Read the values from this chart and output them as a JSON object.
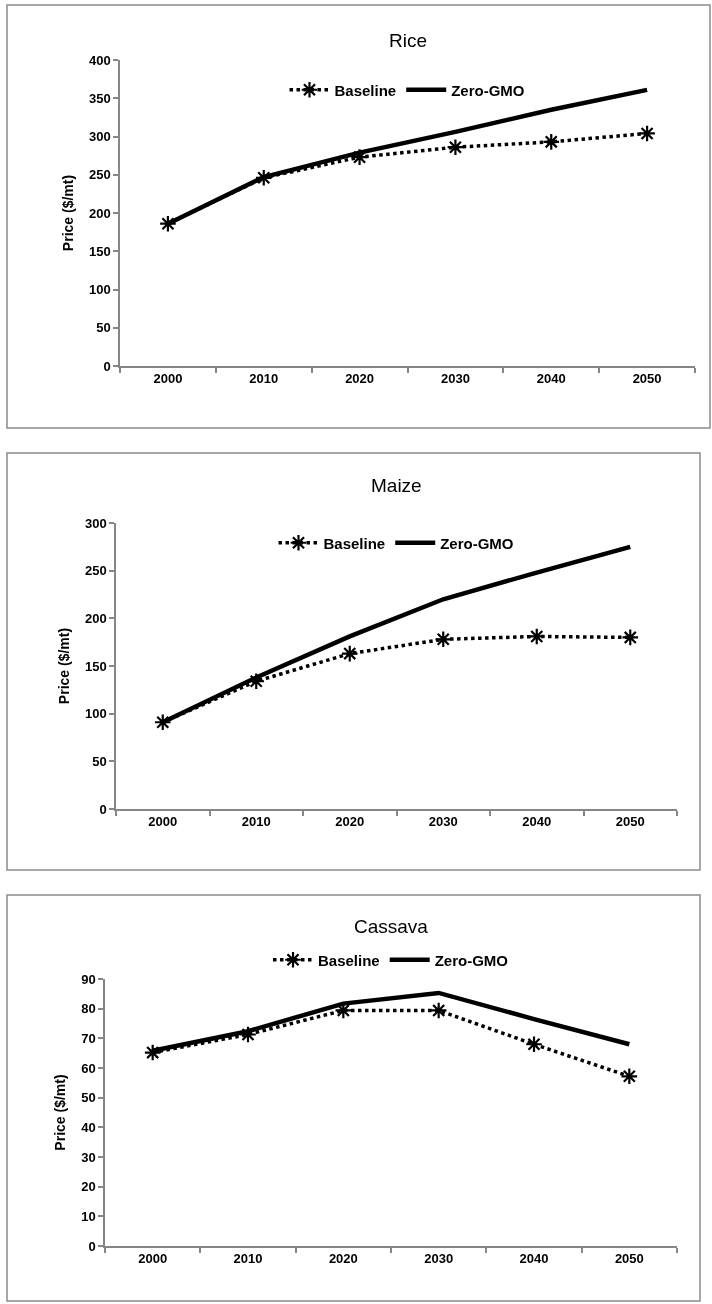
{
  "chart_data": [
    {
      "type": "line",
      "title": "Rice",
      "ylabel": "Price ($/mt)",
      "categories": [
        "2000",
        "2010",
        "2020",
        "2030",
        "2040",
        "2050"
      ],
      "ylim": [
        0,
        400
      ],
      "yticks": [
        0,
        50,
        100,
        150,
        200,
        250,
        300,
        350,
        400
      ],
      "legend": "top",
      "series": [
        {
          "name": "Baseline",
          "color": "#000000",
          "values": [
            186,
            246,
            273,
            286,
            293,
            304
          ],
          "marker": "cross",
          "line_style": "dotted"
        },
        {
          "name": "Zero-GMO",
          "color": "#000000",
          "values": [
            186,
            247,
            279,
            306,
            335,
            361
          ],
          "marker": "none",
          "line_style": "solid"
        }
      ]
    },
    {
      "type": "line",
      "title": "Maize",
      "ylabel": "Price ($/mt)",
      "categories": [
        "2000",
        "2010",
        "2020",
        "2030",
        "2040",
        "2050"
      ],
      "ylim": [
        0,
        300
      ],
      "yticks": [
        0,
        50,
        100,
        150,
        200,
        250,
        300
      ],
      "legend": "top",
      "series": [
        {
          "name": "Baseline",
          "color": "#000000",
          "values": [
            91,
            134,
            163,
            178,
            181,
            180
          ],
          "marker": "cross",
          "line_style": "dotted"
        },
        {
          "name": "Zero-GMO",
          "color": "#000000",
          "values": [
            91,
            138,
            181,
            220,
            248,
            275
          ],
          "marker": "none",
          "line_style": "solid"
        }
      ]
    },
    {
      "type": "line",
      "title": "Cassava",
      "ylabel": "Price ($/mt)",
      "categories": [
        "2000",
        "2010",
        "2020",
        "2030",
        "2040",
        "2050"
      ],
      "ylim": [
        0,
        90
      ],
      "yticks": [
        0,
        10,
        20,
        30,
        40,
        50,
        60,
        70,
        80,
        90
      ],
      "legend": "top",
      "series": [
        {
          "name": "Baseline",
          "color": "#000000",
          "values": [
            65.2,
            71.3,
            79.4,
            79.4,
            68.0,
            57.2
          ],
          "marker": "cross",
          "line_style": "dotted"
        },
        {
          "name": "Zero-GMO",
          "color": "#000000",
          "values": [
            65.8,
            72.4,
            81.7,
            85.3,
            76.5,
            68.0
          ],
          "marker": "none",
          "line_style": "solid"
        }
      ]
    }
  ]
}
